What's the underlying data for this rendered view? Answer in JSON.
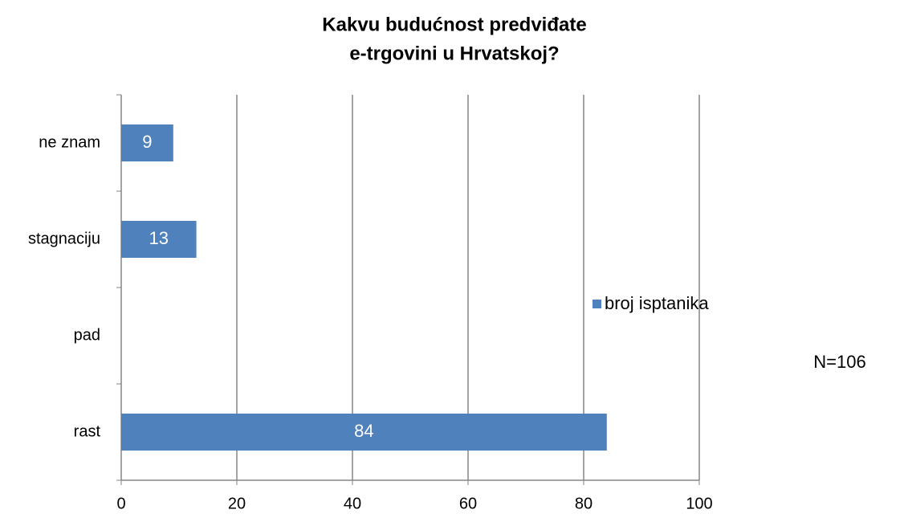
{
  "chart_data": {
    "type": "bar",
    "orientation": "horizontal",
    "title": [
      "Kakvu budućnost predviđate",
      "e-trgovini u Hrvatskoj?"
    ],
    "categories": [
      "rast",
      "pad",
      "stagnaciju",
      "ne znam"
    ],
    "series": [
      {
        "name": "broj isptanika",
        "color": "#4f81bd",
        "values": [
          84,
          0,
          13,
          9
        ]
      }
    ],
    "xlim": [
      0,
      100
    ],
    "xticks": [
      0,
      20,
      40,
      60,
      80,
      100
    ],
    "grid": true,
    "legend": "right",
    "annotation": "N=106"
  }
}
